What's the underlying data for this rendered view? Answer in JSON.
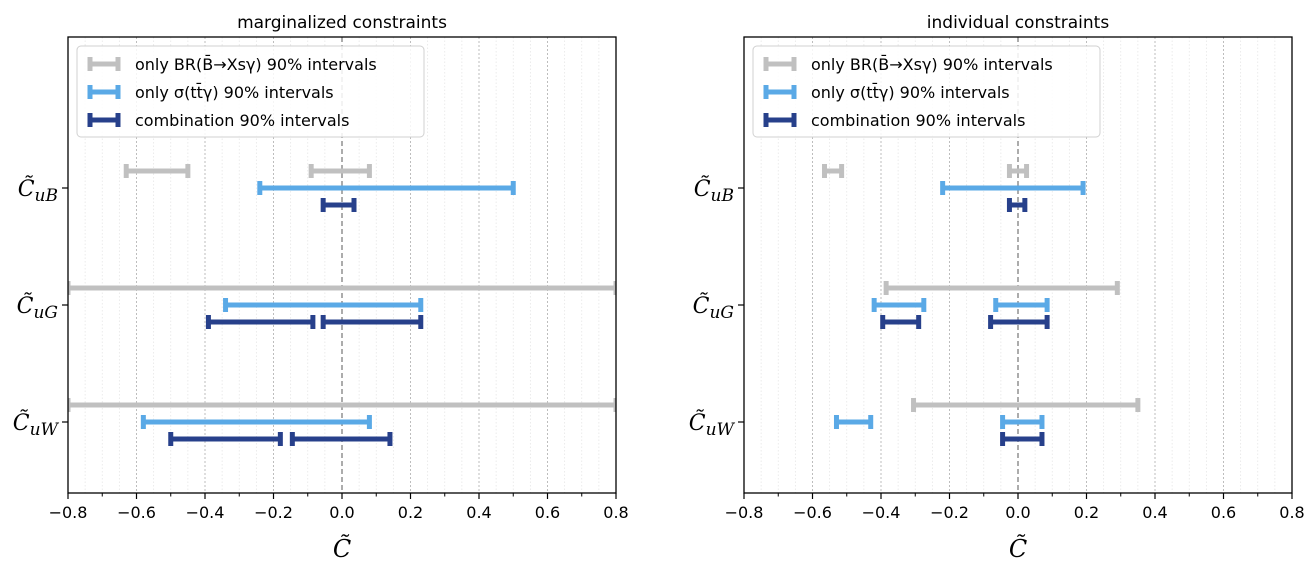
{
  "colors": {
    "br": "#c0c0c0",
    "ttgamma": "#5aa9e6",
    "combination": "#27408b",
    "grid": "#bdbdbd",
    "zero_line": "#808080"
  },
  "chart_data": [
    {
      "type": "interval",
      "title": "marginalized constraints",
      "xlabel": "C̃",
      "xlim": [
        -0.8,
        0.8
      ],
      "xticks": [
        "−0.8",
        "−0.6",
        "−0.4",
        "−0.2",
        "0.0",
        "0.2",
        "0.4",
        "0.6",
        "0.8"
      ],
      "grid": "vertical",
      "legend_position": "top-left",
      "legend": [
        {
          "series": "br",
          "label": "only BR(B̄→Xsγ) 90% intervals"
        },
        {
          "series": "ttgamma",
          "label": "only σ(tt̄γ) 90% intervals"
        },
        {
          "series": "combination",
          "label": "combination 90% intervals"
        }
      ],
      "categories": [
        {
          "label": "C̃uB",
          "label_main": "C̃",
          "label_sub": "uB",
          "br": [
            [
              -0.63,
              -0.45
            ],
            [
              -0.09,
              0.08
            ]
          ],
          "ttgamma": [
            [
              -0.24,
              0.5
            ]
          ],
          "combination": [
            [
              -0.055,
              0.035
            ]
          ]
        },
        {
          "label": "C̃uG",
          "label_main": "C̃",
          "label_sub": "uG",
          "br": [
            [
              -0.8,
              0.8
            ]
          ],
          "ttgamma": [
            [
              -0.34,
              0.23
            ]
          ],
          "combination": [
            [
              -0.39,
              -0.085
            ],
            [
              -0.055,
              0.23
            ]
          ]
        },
        {
          "label": "C̃uW",
          "label_main": "C̃",
          "label_sub": "uW",
          "br": [
            [
              -0.8,
              0.8
            ]
          ],
          "ttgamma": [
            [
              -0.58,
              0.08
            ]
          ],
          "combination": [
            [
              -0.5,
              -0.18
            ],
            [
              -0.145,
              0.14
            ]
          ]
        }
      ]
    },
    {
      "type": "interval",
      "title": "individual constraints",
      "xlabel": "C̃",
      "xlim": [
        -0.8,
        0.8
      ],
      "xticks": [
        "−0.8",
        "−0.6",
        "−0.4",
        "−0.2",
        "0.0",
        "0.2",
        "0.4",
        "0.6",
        "0.8"
      ],
      "grid": "vertical",
      "legend_position": "top-left",
      "legend": [
        {
          "series": "br",
          "label": "only BR(B̄→Xsγ) 90% intervals"
        },
        {
          "series": "ttgamma",
          "label": "only σ(tt̄γ) 90% intervals"
        },
        {
          "series": "combination",
          "label": "combination 90% intervals"
        }
      ],
      "categories": [
        {
          "label": "C̃uB",
          "label_main": "C̃",
          "label_sub": "uB",
          "br": [
            [
              -0.565,
              -0.515
            ],
            [
              -0.025,
              0.025
            ]
          ],
          "ttgamma": [
            [
              -0.22,
              0.19
            ]
          ],
          "combination": [
            [
              -0.025,
              0.02
            ]
          ]
        },
        {
          "label": "C̃uG",
          "label_main": "C̃",
          "label_sub": "uG",
          "br": [
            [
              -0.385,
              0.29
            ]
          ],
          "ttgamma": [
            [
              -0.42,
              -0.275
            ],
            [
              -0.065,
              0.085
            ]
          ],
          "combination": [
            [
              -0.395,
              -0.29
            ],
            [
              -0.08,
              0.085
            ]
          ]
        },
        {
          "label": "C̃uW",
          "label_main": "C̃",
          "label_sub": "uW",
          "br": [
            [
              -0.305,
              0.35
            ]
          ],
          "ttgamma": [
            [
              -0.53,
              -0.43
            ],
            [
              -0.045,
              0.07
            ]
          ],
          "combination": [
            [
              -0.045,
              0.07
            ]
          ]
        }
      ]
    }
  ]
}
